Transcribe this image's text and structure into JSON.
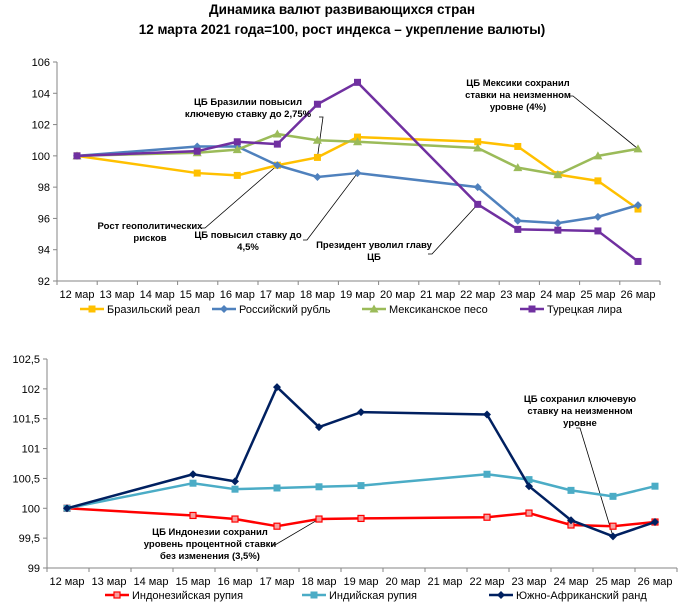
{
  "header": {
    "title": "Динамика валют развивающихся стран",
    "subtitle": "12 марта 2021 года=100, рост индекса – укрепление валюты)"
  },
  "chart_data": [
    {
      "type": "line",
      "title": "",
      "xlabel": "",
      "ylabel": "",
      "categories": [
        "12 мар",
        "13 мар",
        "14 мар",
        "15 мар",
        "16 мар",
        "17 мар",
        "18 мар",
        "19 мар",
        "20 мар",
        "21 мар",
        "22 мар",
        "23 мар",
        "24 мар",
        "25 мар",
        "26 мар"
      ],
      "ylim": [
        92,
        106
      ],
      "yticks": [
        92,
        94,
        96,
        98,
        100,
        102,
        104,
        106
      ],
      "ytick_labels": [
        "92",
        "94",
        "96",
        "98",
        "100",
        "102",
        "104",
        "106"
      ],
      "grid": false,
      "legend_position": "bottom",
      "series": [
        {
          "name": "Бразильский реал",
          "color": "#FFC000",
          "marker": "square",
          "values": [
            100,
            null,
            null,
            98.9,
            98.75,
            99.4,
            99.9,
            101.2,
            null,
            null,
            100.9,
            100.6,
            98.8,
            98.4,
            96.6
          ]
        },
        {
          "name": "Российский рубль",
          "color": "#4F81BD",
          "marker": "diamond",
          "values": [
            100,
            null,
            null,
            100.6,
            100.6,
            99.4,
            98.65,
            98.9,
            null,
            null,
            98.0,
            95.85,
            95.7,
            96.1,
            96.85
          ]
        },
        {
          "name": "Мексиканское песо",
          "color": "#9BBB59",
          "marker": "triangle",
          "values": [
            100,
            null,
            null,
            100.2,
            100.4,
            101.4,
            101.0,
            100.9,
            null,
            null,
            100.5,
            99.25,
            98.8,
            100.0,
            100.45
          ]
        },
        {
          "name": "Турецкая лира",
          "color": "#7030A0",
          "marker": "square",
          "values": [
            100,
            null,
            null,
            100.3,
            100.9,
            100.75,
            103.3,
            104.7,
            null,
            null,
            96.9,
            95.3,
            95.25,
            95.2,
            93.25
          ]
        }
      ],
      "annotations": [
        {
          "lines": [
            "ЦБ Бразилии повысил",
            "ключевую ставку до 2,75%"
          ],
          "target_series": 0,
          "target_index": 6
        },
        {
          "lines": [
            "Рост геополитических",
            "рисков"
          ],
          "target_series": 1,
          "target_index": 5
        },
        {
          "lines": [
            "ЦБ повысил ставку до",
            "4,5%"
          ],
          "target_series": 1,
          "target_index": 7
        },
        {
          "lines": [
            "Президент уволил главу",
            "ЦБ"
          ],
          "target_series": 3,
          "target_index": 10
        },
        {
          "lines": [
            "ЦБ Мексики сохранил",
            "ставки на неизменном",
            "уровне (4%)"
          ],
          "target_series": 2,
          "target_index": 14
        }
      ]
    },
    {
      "type": "line",
      "title": "",
      "xlabel": "",
      "ylabel": "",
      "categories": [
        "12 мар",
        "13 мар",
        "14 мар",
        "15 мар",
        "16 мар",
        "17 мар",
        "18 мар",
        "19 мар",
        "20 мар",
        "21 мар",
        "22 мар",
        "23 мар",
        "24 мар",
        "25 мар",
        "26 мар"
      ],
      "ylim": [
        99,
        102.5
      ],
      "yticks": [
        99,
        99.5,
        100,
        100.5,
        101,
        101.5,
        102,
        102.5
      ],
      "ytick_labels": [
        "99",
        "99,5",
        "100",
        "100,5",
        "101",
        "101,5",
        "102",
        "102,5"
      ],
      "grid": false,
      "legend_position": "bottom",
      "series": [
        {
          "name": "Индонезийская рупия",
          "color": "#FF0000",
          "marker": "square-open",
          "values": [
            100,
            null,
            null,
            99.88,
            99.82,
            99.7,
            99.82,
            99.83,
            null,
            null,
            99.85,
            99.92,
            99.72,
            99.7,
            99.77
          ]
        },
        {
          "name": "Индийская рупия",
          "color": "#4BACC6",
          "marker": "square",
          "values": [
            100,
            null,
            null,
            100.42,
            100.32,
            100.34,
            100.36,
            100.38,
            null,
            null,
            100.57,
            100.48,
            100.3,
            100.2,
            100.37
          ]
        },
        {
          "name": "Южно-Африканский ранд",
          "color": "#002060",
          "marker": "diamond",
          "values": [
            100,
            null,
            null,
            100.57,
            100.45,
            102.03,
            101.36,
            101.61,
            null,
            null,
            101.57,
            100.37,
            99.8,
            99.53,
            99.77
          ]
        }
      ],
      "annotations": [
        {
          "lines": [
            "ЦБ Индонезии сохранил",
            "уровень процентной ставки",
            "без изменения (3,5%)"
          ],
          "target_series": 0,
          "target_index": 6
        },
        {
          "lines": [
            "ЦБ сохранил ключевую",
            "ставку на неизменном",
            "уровне"
          ],
          "target_series": 2,
          "target_index": 13
        }
      ]
    }
  ]
}
